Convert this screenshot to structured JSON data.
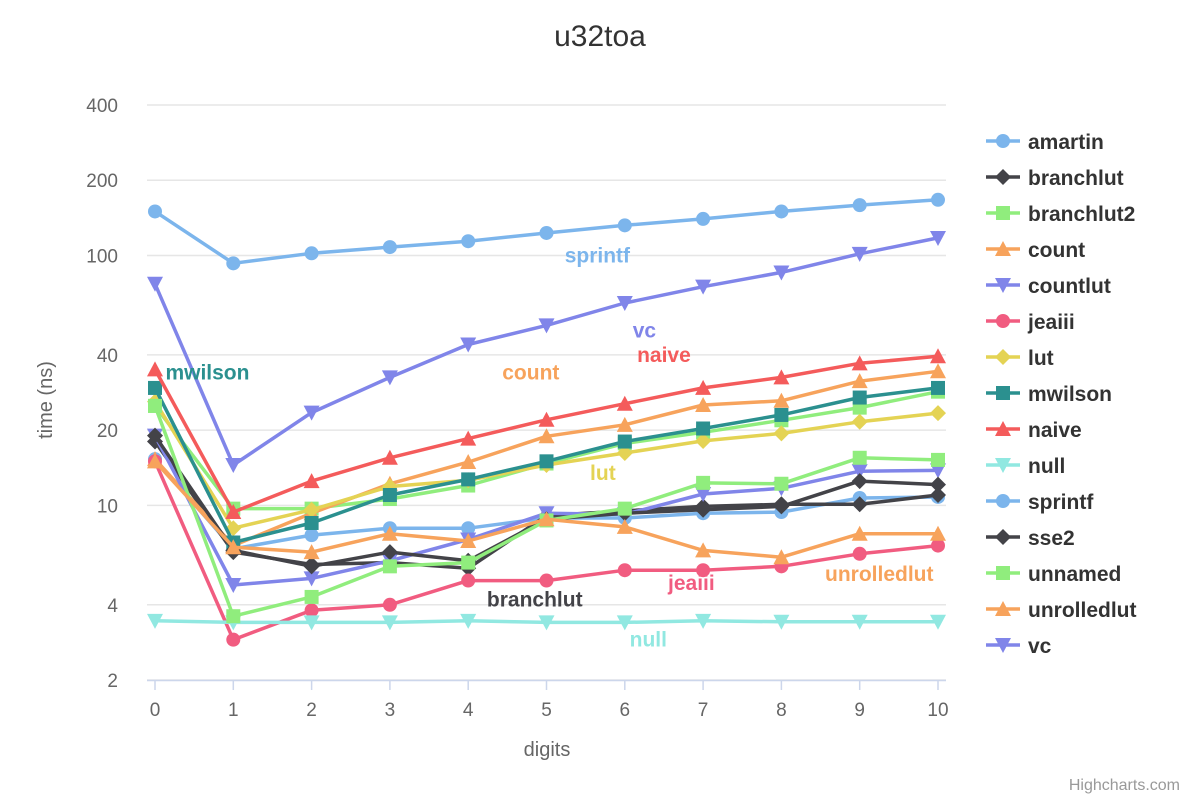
{
  "chart_data": {
    "type": "line",
    "title": "u32toa",
    "xlabel": "digits",
    "ylabel": "time (ns)",
    "yscale": "log",
    "ylim": [
      2,
      400
    ],
    "yticks": [
      2,
      4,
      10,
      20,
      40,
      100,
      200,
      400
    ],
    "ytick_labels": [
      "2",
      "4",
      "10",
      "20",
      "40",
      "100",
      "200",
      "400"
    ],
    "x": [
      0,
      1,
      2,
      3,
      4,
      5,
      6,
      7,
      8,
      9,
      10
    ],
    "x_tick_labels": [
      "0",
      "1",
      "2",
      "3",
      "4",
      "5",
      "6",
      "7",
      "8",
      "9",
      "10"
    ],
    "legend_position": "right",
    "series": [
      {
        "name": "amartin",
        "color": "#7cb5ec",
        "marker": "circle",
        "values": [
          15.3,
          6.7,
          7.6,
          8.1,
          8.1,
          8.9,
          8.9,
          9.3,
          9.4,
          10.7,
          10.8
        ]
      },
      {
        "name": "branchlut",
        "color": "#434348",
        "marker": "diamond",
        "values": [
          18.0,
          6.5,
          5.8,
          5.9,
          5.6,
          9.1,
          9.5,
          9.9,
          10.1,
          10.1,
          11.0
        ]
      },
      {
        "name": "branchlut2",
        "color": "#90ed7d",
        "marker": "square",
        "values": [
          25.0,
          9.7,
          9.7,
          10.6,
          12.0,
          14.7,
          17.7,
          19.6,
          21.9,
          24.6,
          28.5
        ]
      },
      {
        "name": "count",
        "color": "#f7a35c",
        "marker": "triangle",
        "values": [
          15.3,
          6.9,
          9.3,
          12.2,
          14.9,
          18.9,
          21.0,
          25.2,
          26.2,
          31.4,
          34.4
        ]
      },
      {
        "name": "countlut",
        "color": "#8085e9",
        "marker": "triangle-down",
        "values": [
          19.0,
          4.8,
          5.1,
          6.0,
          7.3,
          9.3,
          9.2,
          11.1,
          11.7,
          13.7,
          13.8
        ]
      },
      {
        "name": "jeaiii",
        "color": "#f15c80",
        "marker": "circle",
        "values": [
          15.0,
          2.9,
          3.8,
          4.0,
          5.0,
          5.0,
          5.5,
          5.5,
          5.7,
          6.4,
          6.9
        ]
      },
      {
        "name": "lut",
        "color": "#e4d354",
        "marker": "diamond",
        "values": [
          26.0,
          8.1,
          9.6,
          11.9,
          12.6,
          14.5,
          16.2,
          18.1,
          19.4,
          21.6,
          23.4
        ]
      },
      {
        "name": "mwilson",
        "color": "#2b908f",
        "marker": "square",
        "values": [
          29.5,
          7.1,
          8.5,
          11.0,
          12.7,
          15.0,
          18.0,
          20.3,
          23.0,
          27.0,
          29.5
        ]
      },
      {
        "name": "naive",
        "color": "#f45b5b",
        "marker": "triangle",
        "values": [
          35.0,
          9.4,
          12.5,
          15.5,
          18.5,
          22.0,
          25.5,
          29.5,
          32.5,
          37.0,
          39.5
        ]
      },
      {
        "name": "null",
        "color": "#91e8e1",
        "marker": "triangle-down",
        "values": [
          3.45,
          3.4,
          3.4,
          3.4,
          3.45,
          3.4,
          3.4,
          3.45,
          3.42,
          3.42,
          3.42
        ]
      },
      {
        "name": "sprintf",
        "color": "#7cb5ec",
        "marker": "circle",
        "values": [
          150,
          93,
          102,
          108,
          114,
          123,
          132,
          140,
          150,
          159,
          167
        ]
      },
      {
        "name": "sse2",
        "color": "#434348",
        "marker": "diamond",
        "values": [
          19.0,
          6.6,
          5.7,
          6.5,
          6.0,
          8.8,
          9.3,
          9.6,
          9.9,
          12.5,
          12.1
        ]
      },
      {
        "name": "unnamed",
        "color": "#90ed7d",
        "marker": "square",
        "values": [
          25.0,
          3.6,
          4.3,
          5.7,
          5.9,
          8.7,
          9.7,
          12.3,
          12.2,
          15.5,
          15.2
        ]
      },
      {
        "name": "unrolledlut",
        "color": "#f7a35c",
        "marker": "triangle",
        "values": [
          15.0,
          6.8,
          6.5,
          7.7,
          7.2,
          8.8,
          8.2,
          6.6,
          6.2,
          7.7,
          7.7
        ]
      },
      {
        "name": "vc",
        "color": "#8085e9",
        "marker": "triangle-down",
        "values": [
          77,
          14.5,
          23.5,
          32.5,
          44.0,
          52.5,
          64.5,
          75.0,
          85.5,
          101.5,
          117.5
        ]
      }
    ],
    "annotations": [
      {
        "text": "sprintf",
        "color": "#7cb5ec",
        "x": 5.65,
        "y": 100
      },
      {
        "text": "vc",
        "color": "#8085e9",
        "x": 6.25,
        "y": 50
      },
      {
        "text": "naive",
        "color": "#f45b5b",
        "x": 6.5,
        "y": 40
      },
      {
        "text": "mwilson",
        "color": "#2b908f",
        "x": 0.67,
        "y": 34
      },
      {
        "text": "count",
        "color": "#f7a35c",
        "x": 4.8,
        "y": 34
      },
      {
        "text": "lut",
        "color": "#e4d354",
        "x": 5.72,
        "y": 13.5
      },
      {
        "text": "jeaiii",
        "color": "#f15c80",
        "x": 6.85,
        "y": 4.9
      },
      {
        "text": "branchlut",
        "color": "#434348",
        "x": 4.85,
        "y": 4.2
      },
      {
        "text": "unrolledlut",
        "color": "#f7a35c",
        "x": 9.25,
        "y": 5.3
      },
      {
        "text": "null",
        "color": "#91e8e1",
        "x": 6.3,
        "y": 2.9
      }
    ]
  },
  "credits": "Highcharts.com"
}
